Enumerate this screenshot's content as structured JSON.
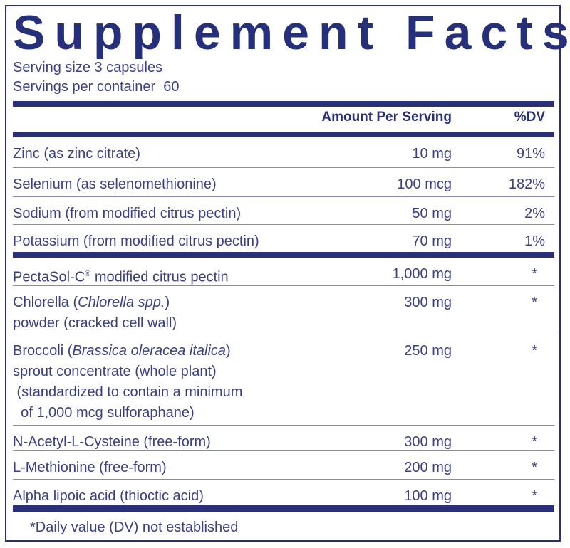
{
  "title": "Supplement Facts",
  "serving_size": "Serving size  3 capsules",
  "servings_per_container": "Servings per container  60",
  "header": {
    "amount": "Amount Per Serving",
    "dv": "%DV"
  },
  "colors": {
    "brand_navy": "#2a3078",
    "text": "#3b4082"
  },
  "group1": [
    {
      "name": [
        [
          {
            "t": "Zinc (as zinc citrate)"
          }
        ]
      ],
      "amount": "10 mg",
      "dv": "91%"
    },
    {
      "name": [
        [
          {
            "t": "Selenium (as selenomethionine)"
          }
        ]
      ],
      "amount": "100 mcg",
      "dv": "182%"
    },
    {
      "name": [
        [
          {
            "t": "Sodium (from modified citrus pectin)"
          }
        ]
      ],
      "amount": "50 mg",
      "dv": "2%"
    },
    {
      "name": [
        [
          {
            "t": "Potassium (from modified citrus pectin)"
          }
        ]
      ],
      "amount": "70 mg",
      "dv": "1%"
    }
  ],
  "group2": [
    {
      "name": [
        [
          {
            "t": "PectaSol-C"
          },
          {
            "t": "®",
            "sup": true
          },
          {
            "t": " modified citrus pectin"
          }
        ]
      ],
      "amount": "1,000 mg",
      "dv": "*"
    },
    {
      "name": [
        [
          {
            "t": "Chlorella ("
          },
          {
            "t": "Chlorella spp.",
            "i": true
          },
          {
            "t": ")"
          }
        ],
        [
          {
            "t": "powder (cracked cell wall)"
          }
        ]
      ],
      "amount": "300 mg",
      "dv": "*"
    },
    {
      "name": [
        [
          {
            "t": "Broccoli ("
          },
          {
            "t": "Brassica oleracea italica",
            "i": true
          },
          {
            "t": ")"
          }
        ],
        [
          {
            "t": "sprout concentrate (whole plant)"
          }
        ],
        [
          {
            "t": " (standardized to contain a minimum"
          }
        ],
        [
          {
            "t": "  of 1,000 mcg sulforaphane)"
          }
        ]
      ],
      "amount": "250 mg",
      "dv": "*"
    },
    {
      "name": [
        [
          {
            "t": "N-Acetyl-L-Cysteine (free-form)"
          }
        ]
      ],
      "amount": "300 mg",
      "dv": "*"
    },
    {
      "name": [
        [
          {
            "t": "L-Methionine (free-form)"
          }
        ]
      ],
      "amount": "200 mg",
      "dv": "*"
    },
    {
      "name": [
        [
          {
            "t": "Alpha lipoic acid (thioctic acid)"
          }
        ]
      ],
      "amount": "100 mg",
      "dv": "*"
    }
  ],
  "footnote": "*Daily value (DV) not established"
}
